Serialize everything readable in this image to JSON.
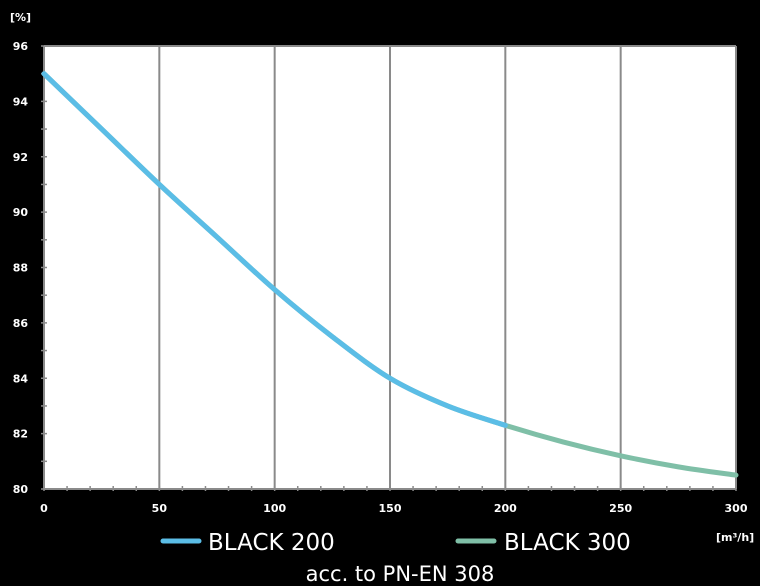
{
  "chart_data": {
    "type": "line",
    "ylabel": "[%]",
    "xlabel": "[m³/h]",
    "subtitle": "acc. to PN-EN 308",
    "xlim": [
      0,
      300
    ],
    "ylim": [
      80,
      96
    ],
    "xticks": [
      0,
      50,
      100,
      150,
      200,
      250,
      300
    ],
    "yticks": [
      80,
      82,
      84,
      86,
      88,
      90,
      92,
      94,
      96
    ],
    "grid": true,
    "legend_position": "bottom",
    "series": [
      {
        "name": "BLACK 300",
        "color": "#7fbfa7",
        "x": [
          0,
          25,
          50,
          75,
          100,
          125,
          150,
          175,
          200,
          225,
          250,
          275,
          300
        ],
        "y": [
          95.0,
          93.0,
          91.0,
          89.1,
          87.2,
          85.5,
          84.0,
          83.0,
          82.3,
          81.7,
          81.2,
          80.8,
          80.5
        ]
      },
      {
        "name": "BLACK 200",
        "color": "#5bbde6",
        "x": [
          0,
          25,
          50,
          75,
          100,
          125,
          150,
          175,
          200
        ],
        "y": [
          95.0,
          93.0,
          91.0,
          89.1,
          87.2,
          85.5,
          84.0,
          83.0,
          82.3
        ]
      }
    ],
    "legend": [
      {
        "label": "BLACK 200",
        "color": "#5bbde6"
      },
      {
        "label": "BLACK 300",
        "color": "#7fbfa7"
      }
    ]
  }
}
